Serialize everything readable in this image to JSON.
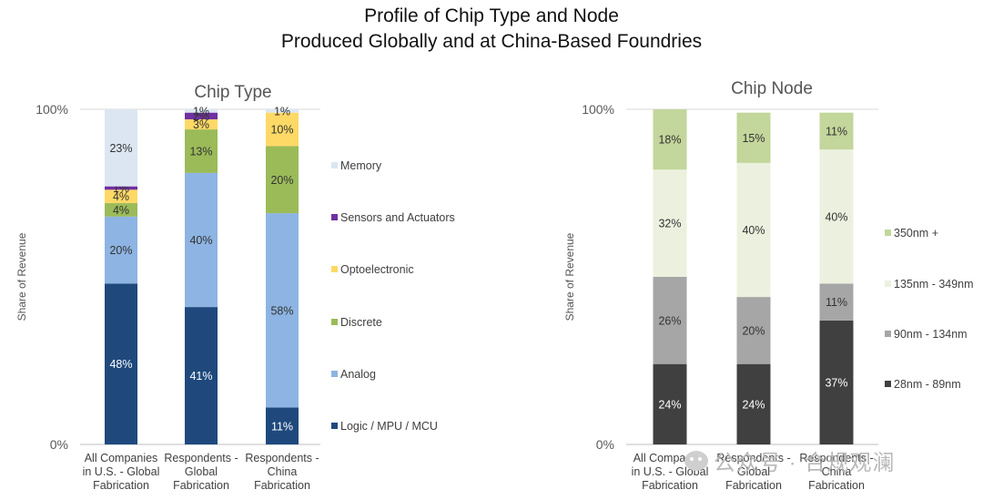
{
  "header": {
    "title_line1": "Profile of Chip Type and Node",
    "title_line2": "Produced Globally and at China-Based Foundries"
  },
  "watermark": {
    "text": "公众号 · 合规观澜",
    "icon": "wechat-icon"
  },
  "chart_data": [
    {
      "type": "bar",
      "stacked": true,
      "title": "Chip Type",
      "ylabel": "Share of Revenue",
      "ylim": [
        0,
        100
      ],
      "yticks": [
        "0%",
        "100%"
      ],
      "categories": [
        [
          "All Companies",
          "in U.S. - Global",
          "Fabrication"
        ],
        [
          "Respondents -",
          "Global",
          "Fabrication"
        ],
        [
          "Respondents -",
          "China",
          "Fabrication"
        ]
      ],
      "legend_position": "right",
      "series": [
        {
          "name": "Logic / MPU / MCU",
          "color": "#1f497d",
          "values": [
            48,
            41,
            11
          ],
          "labels": [
            "48%",
            "41%",
            "11%"
          ],
          "label_color": "#ffffff"
        },
        {
          "name": "Analog",
          "color": "#8db4e2",
          "values": [
            20,
            40,
            58
          ],
          "labels": [
            "20%",
            "40%",
            "58%"
          ],
          "label_color": "#333333"
        },
        {
          "name": "Discrete",
          "color": "#9bbb59",
          "values": [
            4,
            13,
            20
          ],
          "labels": [
            "4%",
            "13%",
            "20%"
          ],
          "label_color": "#333333"
        },
        {
          "name": "Optoelectronic",
          "color": "#ffd966",
          "values": [
            4,
            3,
            10
          ],
          "labels": [
            "4%",
            "3%",
            "10%"
          ],
          "label_color": "#333333"
        },
        {
          "name": "Sensors and Actuators",
          "color": "#7030a0",
          "values": [
            1,
            2,
            0
          ],
          "labels": [
            "1%",
            "2%",
            ""
          ],
          "label_color": "#333333"
        },
        {
          "name": "Memory",
          "color": "#dce6f2",
          "values": [
            23,
            1,
            1
          ],
          "labels": [
            "23%",
            "1%",
            "1%"
          ],
          "label_color": "#333333"
        }
      ]
    },
    {
      "type": "bar",
      "stacked": true,
      "title": "Chip Node",
      "ylabel": "Share of Revenue",
      "ylim": [
        0,
        100
      ],
      "yticks": [
        "0%",
        "100%"
      ],
      "categories": [
        [
          "All Companies",
          "in U.S. - Global",
          "Fabrication"
        ],
        [
          "Respondents -",
          "Global",
          "Fabrication"
        ],
        [
          "Respondents -",
          "China",
          "Fabrication"
        ]
      ],
      "legend_position": "right",
      "series": [
        {
          "name": "28nm - 89nm",
          "color": "#404040",
          "values": [
            24,
            24,
            37
          ],
          "labels": [
            "24%",
            "24%",
            "37%"
          ],
          "label_color": "#ffffff"
        },
        {
          "name": "90nm - 134nm",
          "color": "#a6a6a6",
          "values": [
            26,
            20,
            11
          ],
          "labels": [
            "26%",
            "20%",
            "11%"
          ],
          "label_color": "#333333"
        },
        {
          "name": "135nm - 349nm",
          "color": "#ebf1de",
          "values": [
            32,
            40,
            40
          ],
          "labels": [
            "32%",
            "40%",
            "40%"
          ],
          "label_color": "#333333"
        },
        {
          "name": "350nm +",
          "color": "#c3d69b",
          "values": [
            18,
            15,
            11
          ],
          "labels": [
            "18%",
            "15%",
            "11%"
          ],
          "label_color": "#333333"
        }
      ]
    }
  ]
}
